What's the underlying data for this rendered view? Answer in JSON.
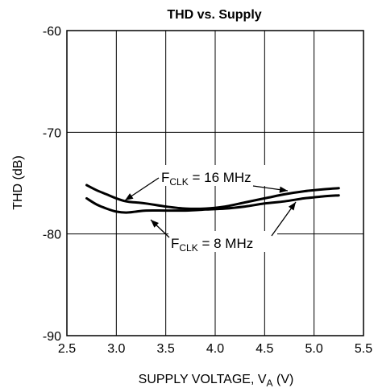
{
  "chart_data": {
    "type": "line",
    "title": "THD vs. Supply",
    "xlabel": {
      "main": "SUPPLY VOLTAGE, V",
      "sub": "A",
      "unit": " (V)"
    },
    "ylabel": "THD (dB)",
    "xlim": [
      2.5,
      5.5
    ],
    "ylim": [
      -90,
      -60
    ],
    "x_ticks": [
      2.5,
      3.0,
      3.5,
      4.0,
      4.5,
      5.0,
      5.5
    ],
    "x_tick_labels": [
      "2.5",
      "3.0",
      "3.5",
      "4.0",
      "4.5",
      "5.0",
      "5.5"
    ],
    "y_ticks": [
      -90,
      -80,
      -70,
      -60
    ],
    "y_tick_labels": [
      "-90",
      "-80",
      "-70",
      "-60"
    ],
    "grid": true,
    "series": [
      {
        "name": {
          "prefix": "F",
          "sub": "CLK",
          "suffix": " = 16 MHz"
        },
        "x": [
          2.7,
          2.8,
          2.9,
          3.0,
          3.1,
          3.2,
          3.3,
          3.5,
          3.7,
          3.9,
          4.1,
          4.3,
          4.5,
          4.7,
          4.9,
          5.1,
          5.25
        ],
        "y": [
          -75.2,
          -75.7,
          -76.1,
          -76.5,
          -76.8,
          -76.9,
          -77.0,
          -77.3,
          -77.5,
          -77.5,
          -77.3,
          -76.9,
          -76.5,
          -76.1,
          -75.8,
          -75.6,
          -75.5
        ]
      },
      {
        "name": {
          "prefix": "F",
          "sub": "CLK",
          "suffix": " = 8 MHz"
        },
        "x": [
          2.7,
          2.8,
          2.9,
          3.0,
          3.1,
          3.2,
          3.3,
          3.5,
          3.7,
          3.9,
          4.1,
          4.3,
          4.5,
          4.7,
          4.9,
          5.1,
          5.25
        ],
        "y": [
          -76.5,
          -77.1,
          -77.5,
          -77.8,
          -77.9,
          -77.8,
          -77.7,
          -77.7,
          -77.7,
          -77.6,
          -77.5,
          -77.3,
          -77.0,
          -76.8,
          -76.5,
          -76.3,
          -76.2
        ]
      }
    ]
  }
}
